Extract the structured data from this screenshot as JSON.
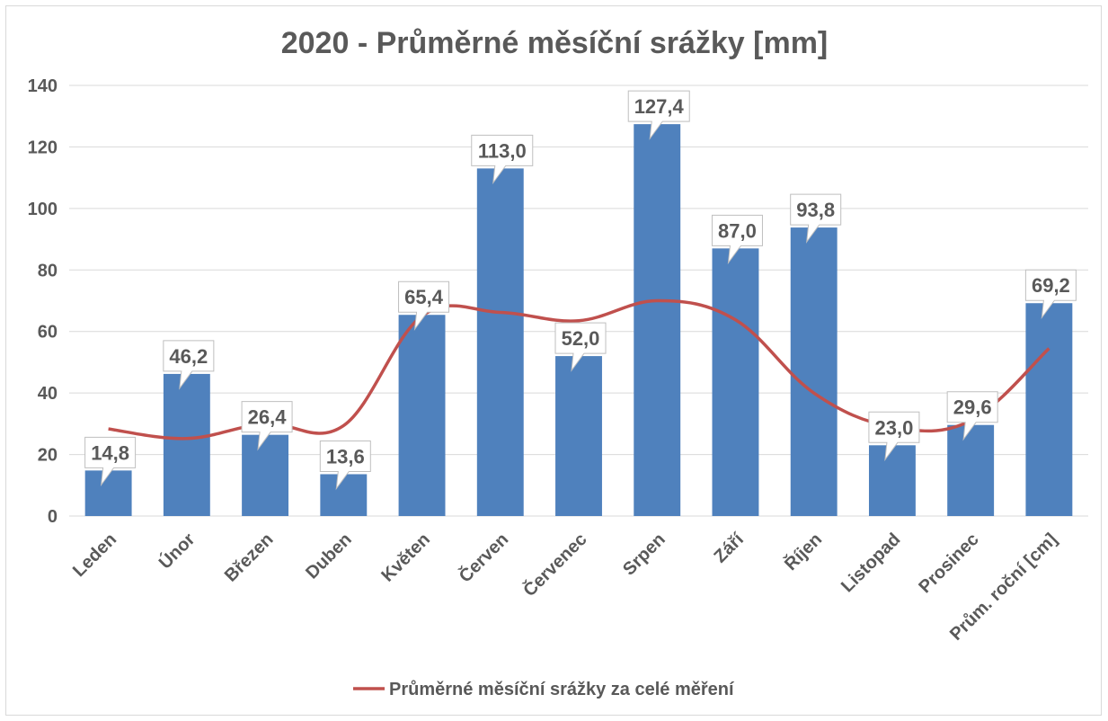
{
  "chart_data": {
    "type": "bar",
    "title": "2020 - Průměrné měsíční srážky [mm]",
    "categories": [
      "Leden",
      "Únor",
      "Březen",
      "Duben",
      "Květen",
      "Červen",
      "Červenec",
      "Srpen",
      "Září",
      "Říjen",
      "Listopad",
      "Prosinec",
      "Prům. roční [cm]"
    ],
    "series": [
      {
        "kind": "bar",
        "values": [
          14.8,
          46.2,
          26.4,
          13.6,
          65.4,
          113.0,
          52.0,
          127.4,
          87.0,
          93.8,
          23.0,
          29.6,
          69.2
        ],
        "labels": [
          "14,8",
          "46,2",
          "26,4",
          "13,6",
          "65,4",
          "113,0",
          "52,0",
          "127,4",
          "87,0",
          "93,8",
          "23,0",
          "29,6",
          "69,2"
        ],
        "color": "#4f81bd"
      },
      {
        "kind": "line",
        "name": "Průměrné měsíční srážky za celé měření",
        "values": [
          28.3,
          25.2,
          30.0,
          29.4,
          65.0,
          66.2,
          63.5,
          70.0,
          63.8,
          40.0,
          29.0,
          31.0,
          54.5
        ],
        "color": "#c0504d"
      }
    ],
    "ylim": [
      0,
      140
    ],
    "yticks": [
      "0",
      "20",
      "40",
      "60",
      "80",
      "100",
      "120",
      "140"
    ],
    "grid": true,
    "legend_position": "bottom",
    "xlabel": "",
    "ylabel": ""
  }
}
